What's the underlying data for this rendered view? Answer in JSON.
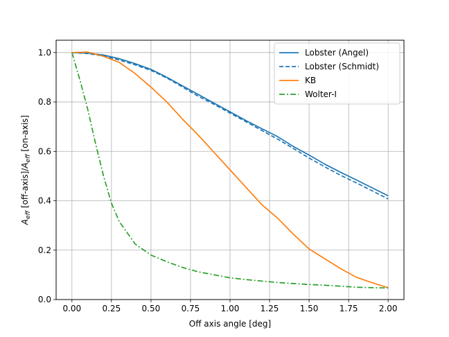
{
  "chart_data": {
    "type": "line",
    "title": "",
    "xlabel": "Off axis angle [deg]",
    "ylabel_parts": {
      "a": "A",
      "eff": "eff",
      "off": " [off-axis]/",
      "a2": "A",
      "eff2": "eff",
      "on": " [on-axis]"
    },
    "xlim": [
      -0.1,
      2.1
    ],
    "ylim": [
      0.0,
      1.05
    ],
    "xticks": [
      0.0,
      0.25,
      0.5,
      0.75,
      1.0,
      1.25,
      1.5,
      1.75,
      2.0
    ],
    "xtick_labels": [
      "0.00",
      "0.25",
      "0.50",
      "0.75",
      "1.00",
      "1.25",
      "1.50",
      "1.75",
      "2.00"
    ],
    "yticks": [
      0.0,
      0.2,
      0.4,
      0.6,
      0.8,
      1.0
    ],
    "ytick_labels": [
      "0.0",
      "0.2",
      "0.4",
      "0.6",
      "0.8",
      "1.0"
    ],
    "grid": true,
    "legend_position": "top-right",
    "series": [
      {
        "name": "Lobster (Angel)",
        "color": "#1f77b4",
        "style": "solid",
        "x": [
          0.0,
          0.1,
          0.2,
          0.3,
          0.4,
          0.5,
          0.6,
          0.7,
          0.8,
          0.9,
          1.0,
          1.1,
          1.2,
          1.3,
          1.4,
          1.5,
          1.6,
          1.7,
          1.8,
          1.9,
          2.0
        ],
        "y": [
          1.0,
          0.998,
          0.99,
          0.975,
          0.955,
          0.932,
          0.9,
          0.865,
          0.83,
          0.795,
          0.76,
          0.725,
          0.692,
          0.66,
          0.62,
          0.585,
          0.548,
          0.515,
          0.484,
          0.452,
          0.42
        ]
      },
      {
        "name": "Lobster (Schmidt)",
        "color": "#1f77b4",
        "style": "dashed",
        "x": [
          0.0,
          0.1,
          0.2,
          0.3,
          0.4,
          0.5,
          0.6,
          0.7,
          0.8,
          0.9,
          1.0,
          1.1,
          1.2,
          1.3,
          1.4,
          1.5,
          1.6,
          1.7,
          1.8,
          1.9,
          2.0
        ],
        "y": [
          1.0,
          0.996,
          0.986,
          0.97,
          0.95,
          0.928,
          0.897,
          0.86,
          0.823,
          0.79,
          0.755,
          0.72,
          0.685,
          0.65,
          0.612,
          0.573,
          0.537,
          0.503,
          0.472,
          0.44,
          0.407
        ]
      },
      {
        "name": "KB",
        "color": "#ff7f0e",
        "style": "solid",
        "x": [
          0.0,
          0.1,
          0.2,
          0.3,
          0.4,
          0.5,
          0.6,
          0.7,
          0.8,
          0.9,
          1.0,
          1.1,
          1.2,
          1.3,
          1.4,
          1.5,
          1.6,
          1.7,
          1.8,
          1.9,
          2.0
        ],
        "y": [
          1.0,
          1.002,
          0.985,
          0.96,
          0.915,
          0.86,
          0.8,
          0.73,
          0.665,
          0.595,
          0.525,
          0.455,
          0.385,
          0.33,
          0.265,
          0.205,
          0.165,
          0.125,
          0.09,
          0.068,
          0.048
        ]
      },
      {
        "name": "Wolter-I",
        "color": "#2ca02c",
        "style": "dashdot",
        "x": [
          0.0,
          0.05,
          0.1,
          0.15,
          0.2,
          0.25,
          0.3,
          0.35,
          0.4,
          0.5,
          0.6,
          0.7,
          0.8,
          0.9,
          1.0,
          1.1,
          1.2,
          1.3,
          1.4,
          1.5,
          1.6,
          1.7,
          1.8,
          1.9,
          2.0
        ],
        "y": [
          1.0,
          0.89,
          0.77,
          0.63,
          0.5,
          0.39,
          0.315,
          0.27,
          0.225,
          0.18,
          0.153,
          0.13,
          0.112,
          0.1,
          0.088,
          0.081,
          0.075,
          0.069,
          0.065,
          0.061,
          0.058,
          0.054,
          0.05,
          0.048,
          0.047
        ]
      }
    ]
  }
}
